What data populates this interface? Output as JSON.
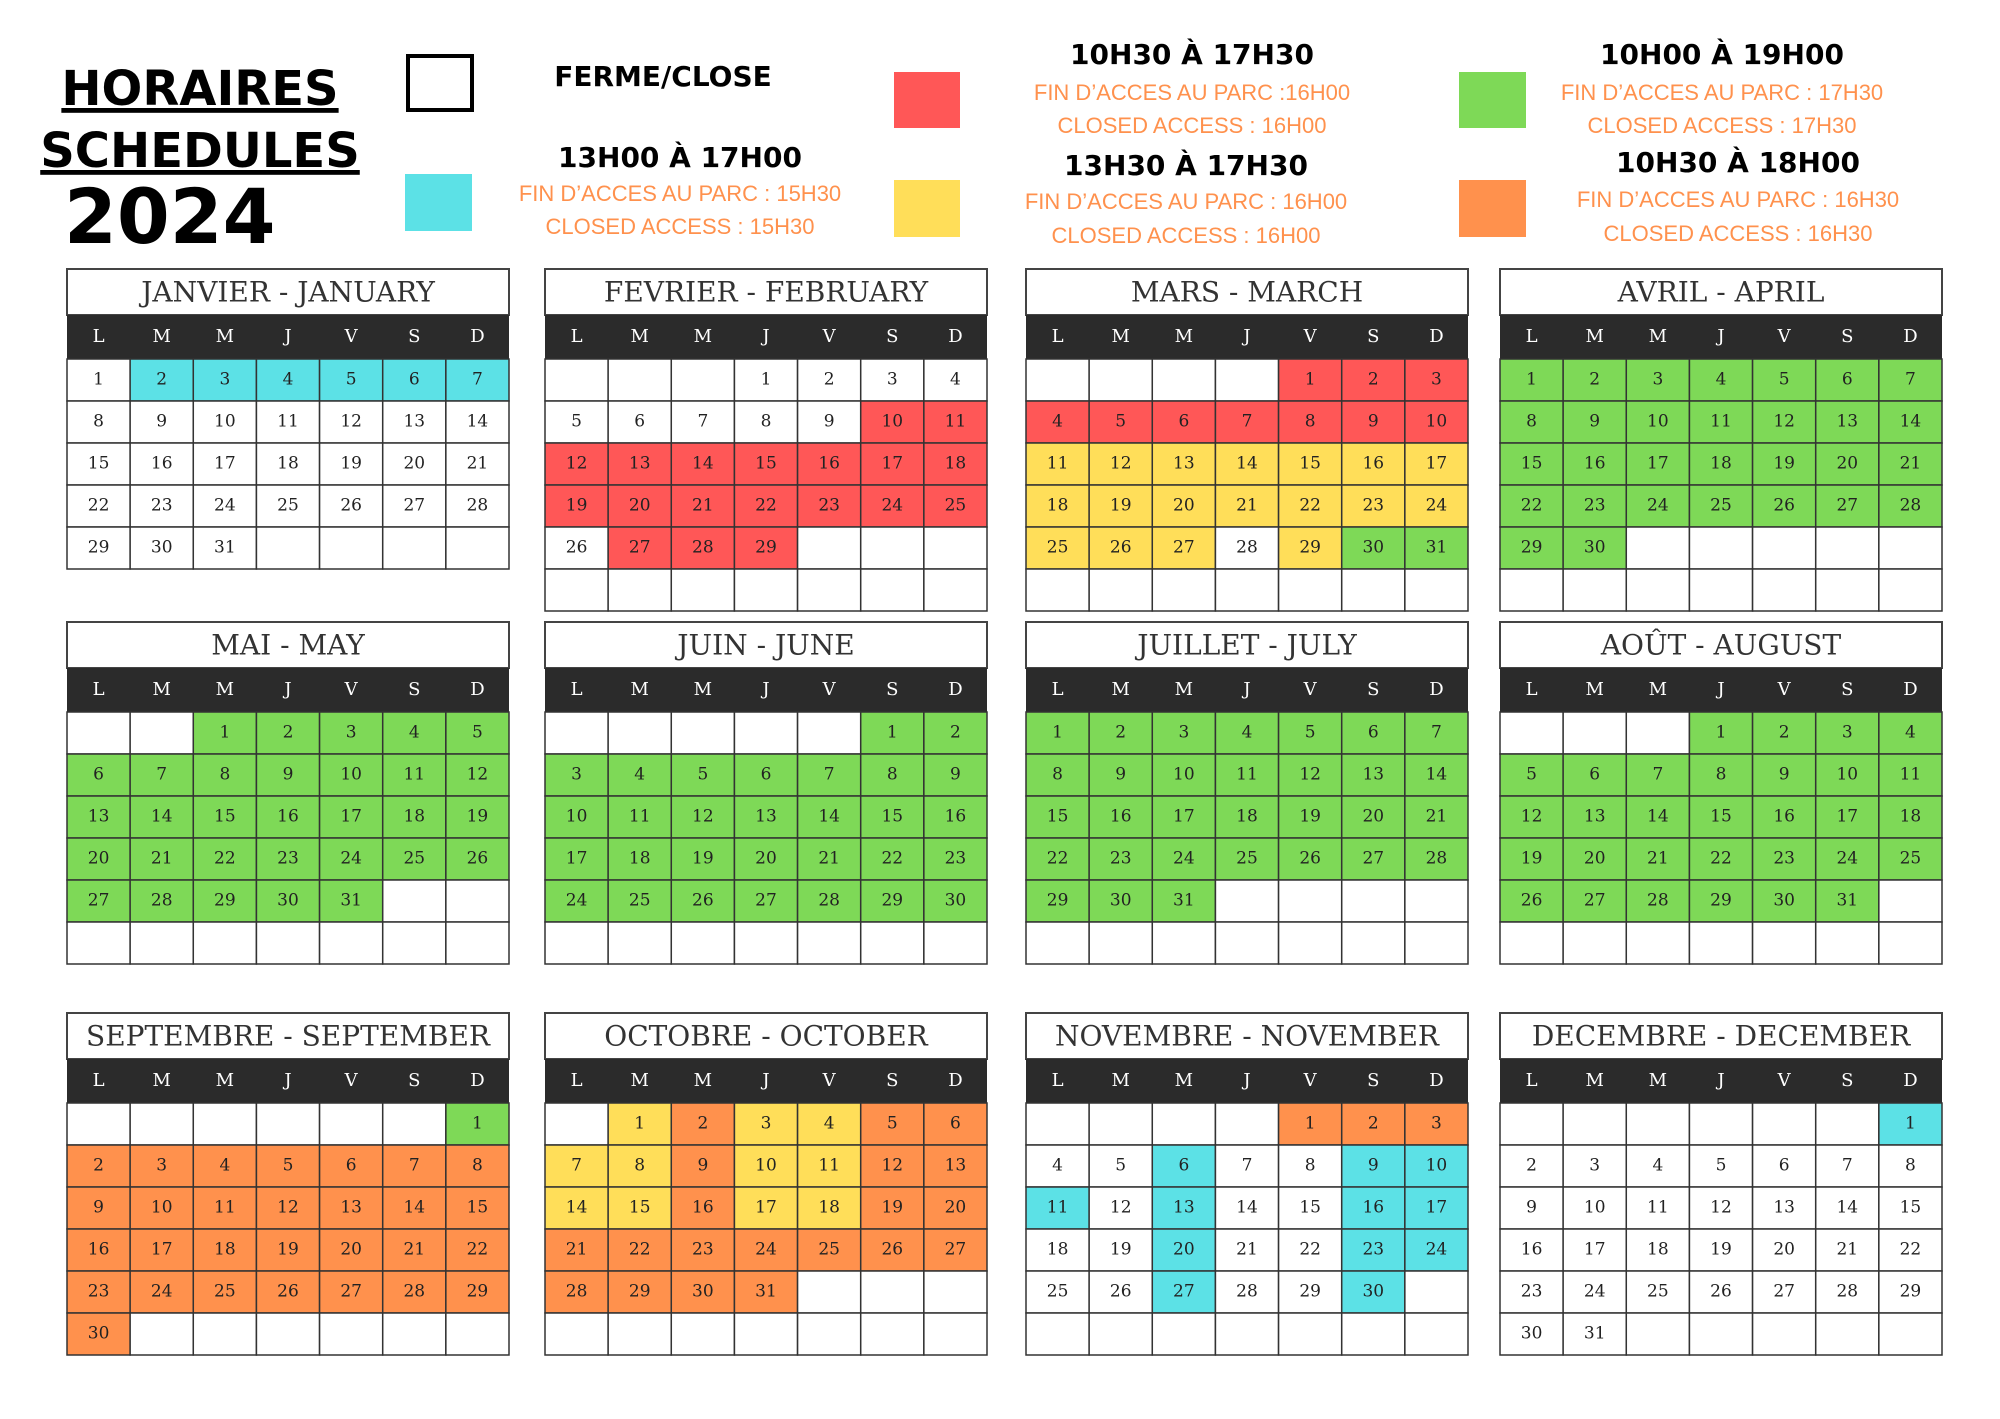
{
  "header": {
    "title_lines": [
      "HORAIRES",
      "SCHEDULES"
    ],
    "year": "2024"
  },
  "palette": {
    "w": "#ffffff",
    "c": "#5ce1e6",
    "r": "#ff5757",
    "y": "#ffde59",
    "g": "#7ed957",
    "o": "#ff914d"
  },
  "legend": [
    {
      "key": "w",
      "label": "FERME/CLOSE"
    },
    {
      "key": "c",
      "label": "13H00 À 17H00",
      "notes": [
        "FIN D’ACCES AU PARC : 15H30",
        "CLOSED ACCESS : 15H30"
      ]
    },
    {
      "key": "r",
      "label": "10H30 À 17H30",
      "notes": [
        "FIN D’ACCES AU PARC :16H00",
        "CLOSED ACCESS : 16H00"
      ]
    },
    {
      "key": "y",
      "label": "13H30 À 17H30",
      "notes": [
        "FIN D’ACCES AU PARC : 16H00",
        "CLOSED ACCESS : 16H00"
      ]
    },
    {
      "key": "g",
      "label": "10H00 À 19H00",
      "notes": [
        "FIN D’ACCES AU PARC : 17H30",
        "CLOSED ACCESS : 17H30"
      ]
    },
    {
      "key": "o",
      "label": "10H30 À 18H00",
      "notes": [
        "FIN D’ACCES AU PARC : 16H30",
        "CLOSED ACCESS : 16H30"
      ]
    }
  ],
  "weekdays": [
    "L",
    "M",
    "M",
    "J",
    "V",
    "S",
    "D"
  ],
  "months": [
    {
      "title": "JANVIER - JANUARY",
      "weeks": [
        [
          1,
          2,
          3,
          4,
          5,
          6,
          7
        ],
        [
          8,
          9,
          10,
          11,
          12,
          13,
          14
        ],
        [
          15,
          16,
          17,
          18,
          19,
          20,
          21
        ],
        [
          22,
          23,
          24,
          25,
          26,
          27,
          28
        ],
        [
          29,
          30,
          31,
          null,
          null,
          null,
          null
        ]
      ],
      "schedule": [
        "wcccccc",
        "wwwwwww",
        "wwwwwww",
        "wwwwwww",
        "wwwwwww"
      ]
    },
    {
      "title": "FEVRIER - FEBRUARY",
      "weeks": [
        [
          null,
          null,
          null,
          1,
          2,
          3,
          4
        ],
        [
          5,
          6,
          7,
          8,
          9,
          10,
          11
        ],
        [
          12,
          13,
          14,
          15,
          16,
          17,
          18
        ],
        [
          19,
          20,
          21,
          22,
          23,
          24,
          25
        ],
        [
          26,
          27,
          28,
          29,
          null,
          null,
          null
        ],
        [
          null,
          null,
          null,
          null,
          null,
          null,
          null
        ]
      ],
      "schedule": [
        "wwwwwww",
        "wwwwwrr",
        "rrrrrrr",
        "rrrrrrr",
        "wrrrwww",
        "wwwwwww"
      ]
    },
    {
      "title": "MARS - MARCH",
      "weeks": [
        [
          null,
          null,
          null,
          null,
          1,
          2,
          3
        ],
        [
          4,
          5,
          6,
          7,
          8,
          9,
          10
        ],
        [
          11,
          12,
          13,
          14,
          15,
          16,
          17
        ],
        [
          18,
          19,
          20,
          21,
          22,
          23,
          24
        ],
        [
          25,
          26,
          27,
          28,
          29,
          30,
          31
        ],
        [
          null,
          null,
          null,
          null,
          null,
          null,
          null
        ]
      ],
      "schedule": [
        "wwwwrrr",
        "rrrrrrr",
        "yyyyyyy",
        "yyyyyyy",
        "yyywygg",
        "wwwwwww"
      ]
    },
    {
      "title": "AVRIL - APRIL",
      "weeks": [
        [
          1,
          2,
          3,
          4,
          5,
          6,
          7
        ],
        [
          8,
          9,
          10,
          11,
          12,
          13,
          14
        ],
        [
          15,
          16,
          17,
          18,
          19,
          20,
          21
        ],
        [
          22,
          23,
          24,
          25,
          26,
          27,
          28
        ],
        [
          29,
          30,
          null,
          null,
          null,
          null,
          null
        ],
        [
          null,
          null,
          null,
          null,
          null,
          null,
          null
        ]
      ],
      "schedule": [
        "ggggggg",
        "ggggggg",
        "ggggggg",
        "ggggggg",
        "ggwwwww",
        "wwwwwww"
      ]
    },
    {
      "title": "MAI - MAY",
      "weeks": [
        [
          null,
          null,
          1,
          2,
          3,
          4,
          5
        ],
        [
          6,
          7,
          8,
          9,
          10,
          11,
          12
        ],
        [
          13,
          14,
          15,
          16,
          17,
          18,
          19
        ],
        [
          20,
          21,
          22,
          23,
          24,
          25,
          26
        ],
        [
          27,
          28,
          29,
          30,
          31,
          null,
          null
        ],
        [
          null,
          null,
          null,
          null,
          null,
          null,
          null
        ]
      ],
      "schedule": [
        "wwggggg",
        "ggggggg",
        "ggggggg",
        "ggggggg",
        "gggggww",
        "wwwwwww"
      ]
    },
    {
      "title": "JUIN - JUNE",
      "weeks": [
        [
          null,
          null,
          null,
          null,
          null,
          1,
          2
        ],
        [
          3,
          4,
          5,
          6,
          7,
          8,
          9
        ],
        [
          10,
          11,
          12,
          13,
          14,
          15,
          16
        ],
        [
          17,
          18,
          19,
          20,
          21,
          22,
          23
        ],
        [
          24,
          25,
          26,
          27,
          28,
          29,
          30
        ],
        [
          null,
          null,
          null,
          null,
          null,
          null,
          null
        ]
      ],
      "schedule": [
        "wwwwwgg",
        "ggggggg",
        "ggggggg",
        "ggggggg",
        "ggggggg",
        "wwwwwww"
      ]
    },
    {
      "title": "JUILLET - JULY",
      "weeks": [
        [
          1,
          2,
          3,
          4,
          5,
          6,
          7
        ],
        [
          8,
          9,
          10,
          11,
          12,
          13,
          14
        ],
        [
          15,
          16,
          17,
          18,
          19,
          20,
          21
        ],
        [
          22,
          23,
          24,
          25,
          26,
          27,
          28
        ],
        [
          29,
          30,
          31,
          null,
          null,
          null,
          null
        ],
        [
          null,
          null,
          null,
          null,
          null,
          null,
          null
        ]
      ],
      "schedule": [
        "ggggggg",
        "ggggggg",
        "ggggggg",
        "ggggggg",
        "gggwwww",
        "wwwwwww"
      ]
    },
    {
      "title": "AOÛT - AUGUST",
      "weeks": [
        [
          null,
          null,
          null,
          1,
          2,
          3,
          4
        ],
        [
          5,
          6,
          7,
          8,
          9,
          10,
          11
        ],
        [
          12,
          13,
          14,
          15,
          16,
          17,
          18
        ],
        [
          19,
          20,
          21,
          22,
          23,
          24,
          25
        ],
        [
          26,
          27,
          28,
          29,
          30,
          31,
          null
        ],
        [
          null,
          null,
          null,
          null,
          null,
          null,
          null
        ]
      ],
      "schedule": [
        "wwwgggg",
        "ggggggg",
        "ggggggg",
        "ggggggg",
        "ggggggw",
        "wwwwwww"
      ]
    },
    {
      "title": "SEPTEMBRE - SEPTEMBER",
      "weeks": [
        [
          null,
          null,
          null,
          null,
          null,
          null,
          1
        ],
        [
          2,
          3,
          4,
          5,
          6,
          7,
          8
        ],
        [
          9,
          10,
          11,
          12,
          13,
          14,
          15
        ],
        [
          16,
          17,
          18,
          19,
          20,
          21,
          22
        ],
        [
          23,
          24,
          25,
          26,
          27,
          28,
          29
        ],
        [
          30,
          null,
          null,
          null,
          null,
          null,
          null
        ]
      ],
      "schedule": [
        "wwwwwwg",
        "ooooooo",
        "ooooooo",
        "ooooooo",
        "ooooooo",
        "owwwwww"
      ]
    },
    {
      "title": "OCTOBRE - OCTOBER",
      "weeks": [
        [
          null,
          1,
          2,
          3,
          4,
          5,
          6
        ],
        [
          7,
          8,
          9,
          10,
          11,
          12,
          13
        ],
        [
          14,
          15,
          16,
          17,
          18,
          19,
          20
        ],
        [
          21,
          22,
          23,
          24,
          25,
          26,
          27
        ],
        [
          28,
          29,
          30,
          31,
          null,
          null,
          null
        ],
        [
          null,
          null,
          null,
          null,
          null,
          null,
          null
        ]
      ],
      "schedule": [
        "wyoyyoo",
        "yyoyyoo",
        "yyoyyoo",
        "ooooooo",
        "oooowww",
        "wwwwwww"
      ]
    },
    {
      "title": "NOVEMBRE - NOVEMBER",
      "weeks": [
        [
          null,
          null,
          null,
          null,
          1,
          2,
          3
        ],
        [
          4,
          5,
          6,
          7,
          8,
          9,
          10
        ],
        [
          11,
          12,
          13,
          14,
          15,
          16,
          17
        ],
        [
          18,
          19,
          20,
          21,
          22,
          23,
          24
        ],
        [
          25,
          26,
          27,
          28,
          29,
          30,
          null
        ],
        [
          null,
          null,
          null,
          null,
          null,
          null,
          null
        ]
      ],
      "schedule": [
        "wwwwooo",
        "wwcwwcc",
        "cwcwwcc",
        "wwcwwcc",
        "wwcwwcw",
        "wwwwwww"
      ]
    },
    {
      "title": "DECEMBRE - DECEMBER",
      "weeks": [
        [
          null,
          null,
          null,
          null,
          null,
          null,
          1
        ],
        [
          2,
          3,
          4,
          5,
          6,
          7,
          8
        ],
        [
          9,
          10,
          11,
          12,
          13,
          14,
          15
        ],
        [
          16,
          17,
          18,
          19,
          20,
          21,
          22
        ],
        [
          23,
          24,
          25,
          26,
          27,
          28,
          29
        ],
        [
          30,
          31,
          null,
          null,
          null,
          null,
          null
        ]
      ],
      "schedule": [
        "wwwwwwc",
        "wwwwwww",
        "wwwwwww",
        "wwwwwww",
        "wwwwwww",
        "wwwwwww"
      ]
    }
  ]
}
